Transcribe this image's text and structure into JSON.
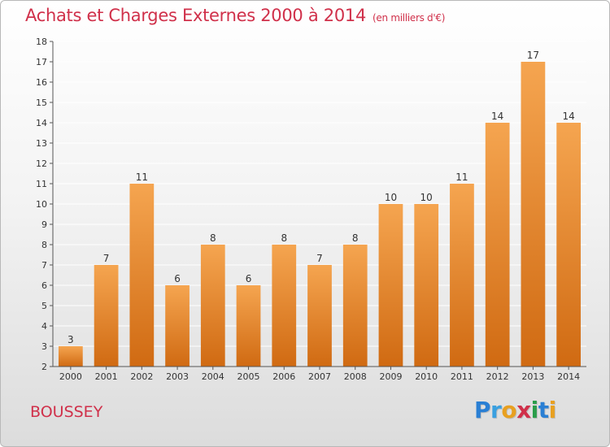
{
  "title": "Achats et Charges Externes 2000 à 2014",
  "unit_note": "(en milliers d'€)",
  "place": "BOUSSEY",
  "brand": {
    "letters": [
      {
        "ch": "P",
        "color": "#2a7fd4"
      },
      {
        "ch": "r",
        "color": "#3aa0e0"
      },
      {
        "ch": "o",
        "color": "#e8a020"
      },
      {
        "ch": "x",
        "color": "#d0304a"
      },
      {
        "ch": "i",
        "color": "#2a9d4a"
      },
      {
        "ch": "t",
        "color": "#2a7fd4"
      },
      {
        "ch": "i",
        "color": "#e8a020"
      }
    ]
  },
  "chart_data": {
    "type": "bar",
    "categories": [
      "2000",
      "2001",
      "2002",
      "2003",
      "2004",
      "2005",
      "2006",
      "2007",
      "2008",
      "2009",
      "2010",
      "2011",
      "2012",
      "2013",
      "2014"
    ],
    "values": [
      3,
      7,
      11,
      6,
      8,
      6,
      8,
      7,
      8,
      10,
      10,
      11,
      14,
      17,
      14
    ],
    "ylim": [
      2,
      18
    ],
    "yticks": [
      2,
      3,
      4,
      5,
      6,
      7,
      8,
      9,
      10,
      11,
      12,
      13,
      14,
      15,
      16,
      17,
      18
    ],
    "grid": true,
    "bar_color_top": "#f5a550",
    "bar_color_bottom": "#d06a12",
    "grid_color": "#ffffff",
    "axis_color": "#555555",
    "text_color": "#333333"
  }
}
